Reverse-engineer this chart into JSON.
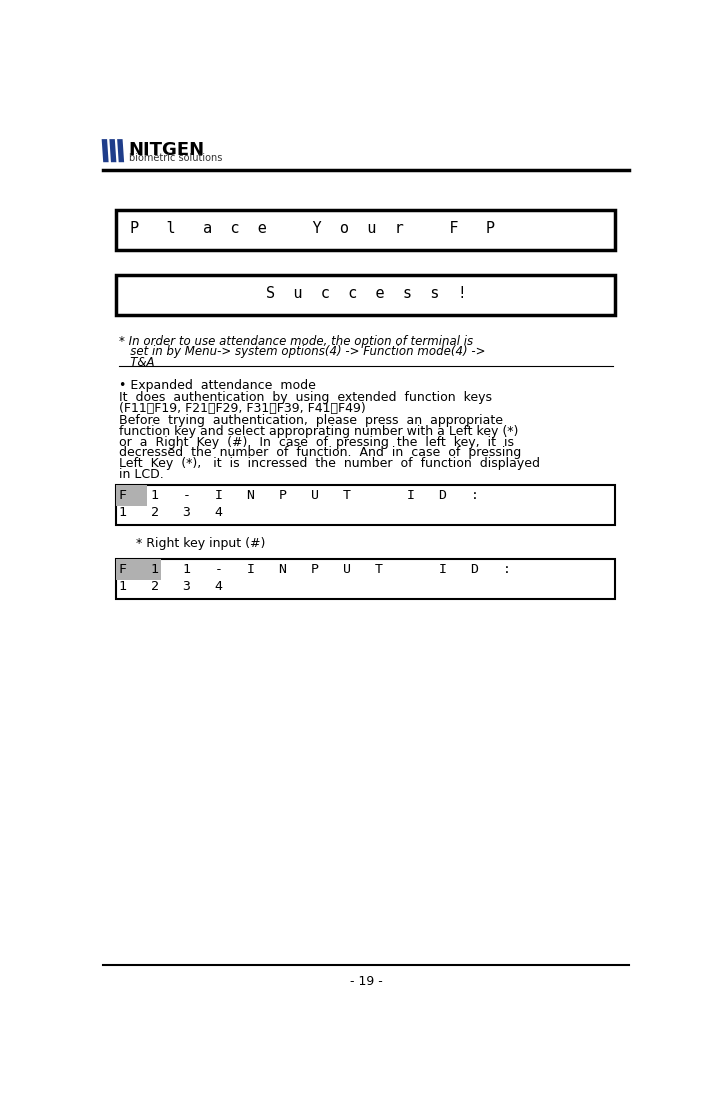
{
  "page_number": "- 19 -",
  "logo_text_main": "NITGEN",
  "logo_text_sub": "biometric solutions",
  "lcd_box1_text": "P   l   a  c  e     Y  o  u  r     F   P",
  "lcd_box2_text": "S  u  c  c  e  s  s  !",
  "note1_line1": "* In order to use attendance mode, the option of terminal is",
  "note1_line2": "   set in by Menu-> system options(4) -> Function mode(4) ->",
  "note1_line3": "   T&A",
  "bullet_title": "• Expanded  attendance  mode",
  "para1_line1": "It  does  authentication  by  using  extended  function  keys",
  "para1_line2": "(F11～F19, F21～F29, F31～F39, F41～F49)",
  "para2_line1": "Before  trying  authentication,  please  press  an  appropriate",
  "para2_line2": "function key and select approprating number with a Left key (*)",
  "para2_line3": "or  a  Right  Key  (#).  In  case  of  pressing  the  left  key,  it  is",
  "para2_line4": "decressed  the  number  of  function.  And  in  case  of  pressing",
  "para2_line5": "Left  Key  (*),   it  is  incressed  the  number  of  function  displayed",
  "para2_line6": "in LCD.",
  "box3_row1": "F   1   -   I   N   P   U   T       I   D   :",
  "box3_row2": "1   2   3   4",
  "note2": "  * Right key input (#)",
  "box4_row1": "F   1   1   -   I   N   P   U   T       I   D   :",
  "box4_row2": "1   2   3   4",
  "bg_color": "#ffffff",
  "text_color": "#000000",
  "box_border_color": "#000000",
  "highlight_color": "#b0b0b0",
  "logo_bar_color": "#1f3d8a"
}
